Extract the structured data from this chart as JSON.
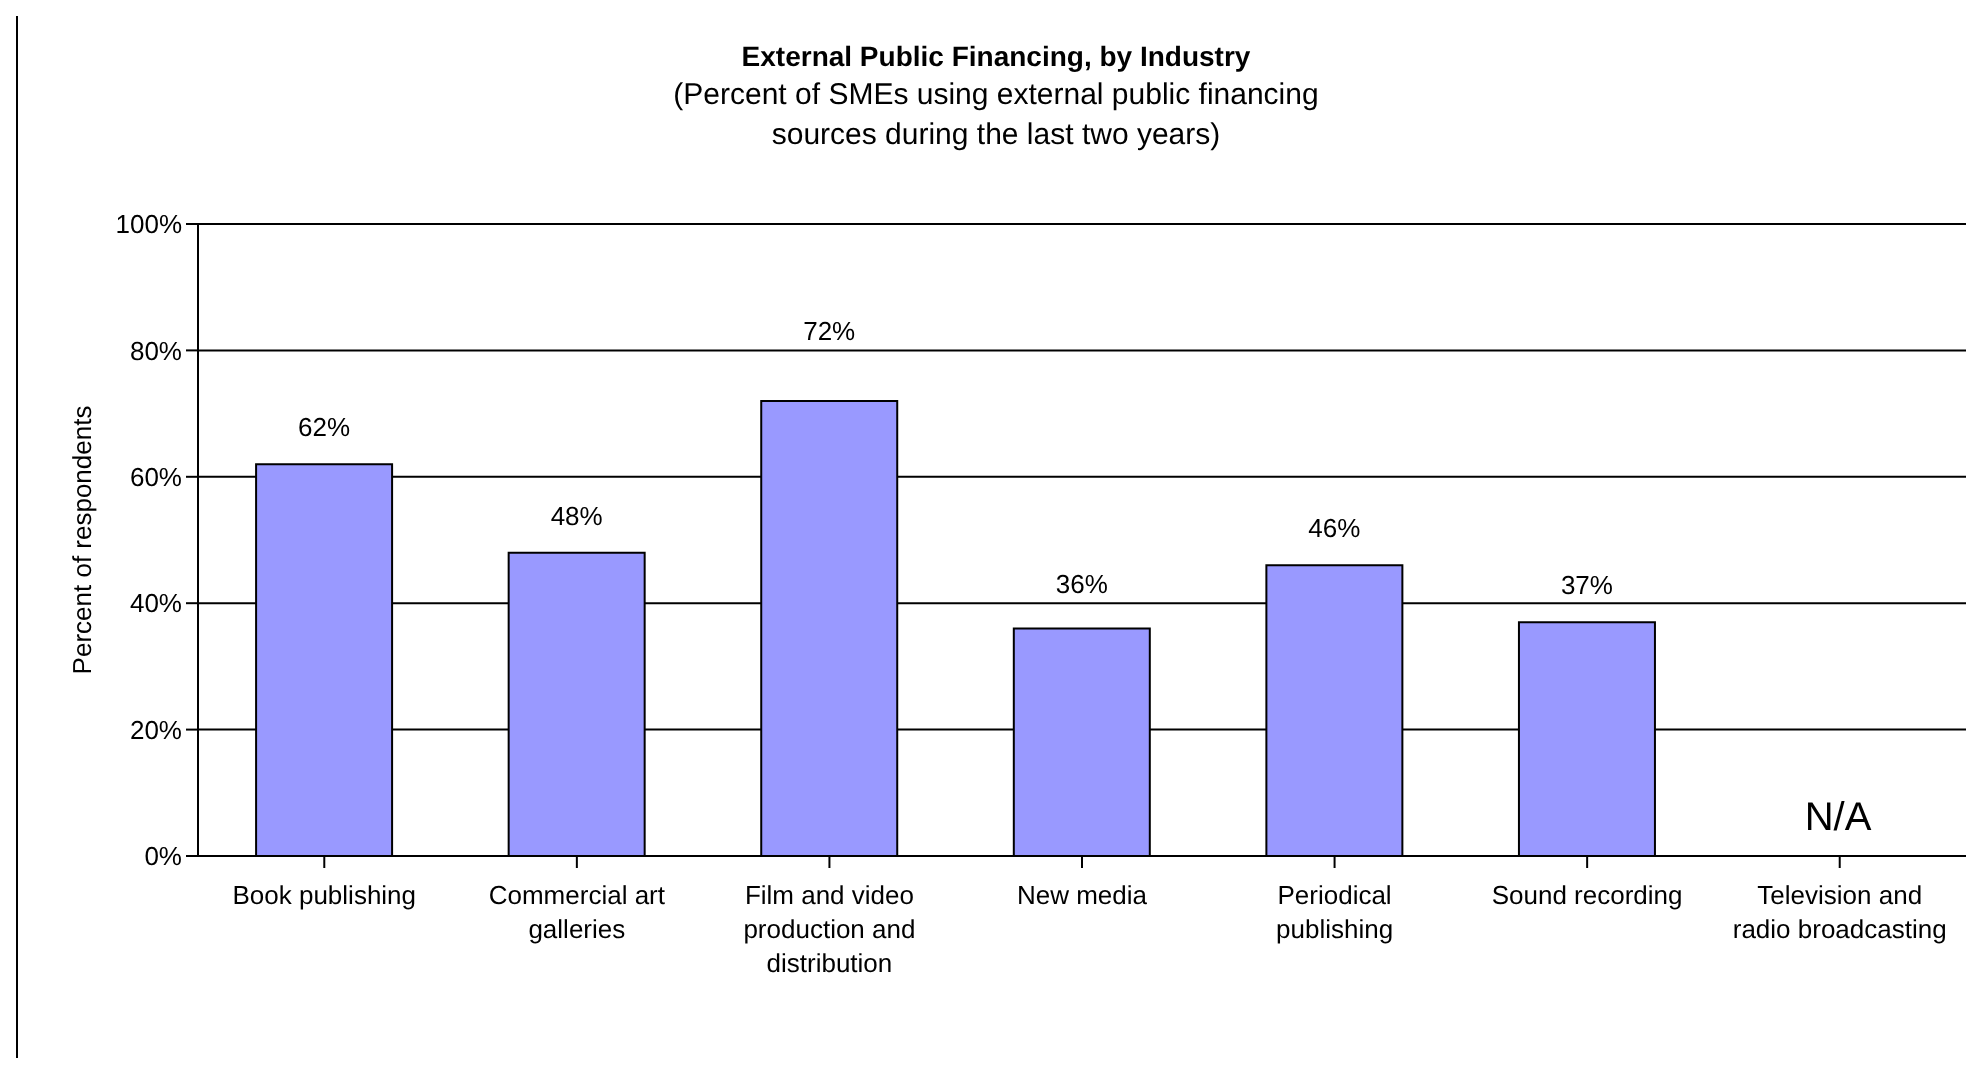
{
  "chart_data": {
    "type": "bar",
    "title": "External Public Financing, by Industry",
    "subtitle": "(Percent of SMEs using external public financing sources during the last two years)",
    "ylabel": "Percent of respondents",
    "categories": [
      "Book publishing",
      "Commercial art galleries",
      "Film and video production and distribution",
      "New media",
      "Periodical publishing",
      "Sound recording",
      "Television and radio broadcasting"
    ],
    "values": [
      62,
      48,
      72,
      36,
      46,
      37,
      null
    ],
    "color": "#9999ff",
    "value_labels": [
      "62%",
      "48%",
      "72%",
      "36%",
      "46%",
      "37%",
      null
    ],
    "ylim": [
      0,
      100
    ],
    "yticks": [
      {
        "value": 0,
        "label": "0%"
      },
      {
        "value": 20,
        "label": "20%"
      },
      {
        "value": 40,
        "label": "40%"
      },
      {
        "value": 60,
        "label": "60%"
      },
      {
        "value": 80,
        "label": "80%"
      },
      {
        "value": 100,
        "label": "100%"
      }
    ],
    "grid": "y",
    "legend": false,
    "annotations": [
      "N/A"
    ]
  }
}
